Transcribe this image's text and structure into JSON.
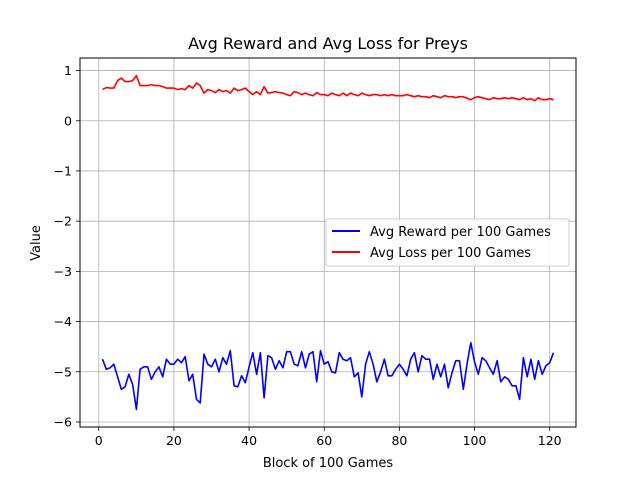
{
  "chart_data": {
    "type": "line",
    "title": "Avg Reward and Avg Loss for Preys",
    "xlabel": "Block of 100 Games",
    "ylabel": "Value",
    "xlim": [
      -5,
      127
    ],
    "ylim": [
      -6.1,
      1.25
    ],
    "xticks": [
      0,
      20,
      40,
      60,
      80,
      100,
      120
    ],
    "yticks": [
      1,
      0,
      -1,
      -2,
      -3,
      -4,
      -5,
      -6
    ],
    "ytick_labels": [
      "1",
      "0",
      "−1",
      "−2",
      "−3",
      "−4",
      "−5",
      "−6"
    ],
    "grid": true,
    "legend_position": "center-right",
    "series": [
      {
        "name": "Avg Reward per 100 Games",
        "color": "#0000ff",
        "x": [
          1,
          2,
          3,
          4,
          5,
          6,
          7,
          8,
          9,
          10,
          11,
          12,
          13,
          14,
          15,
          16,
          17,
          18,
          19,
          20,
          21,
          22,
          23,
          24,
          25,
          26,
          27,
          28,
          29,
          30,
          31,
          32,
          33,
          34,
          35,
          36,
          37,
          38,
          39,
          40,
          41,
          42,
          43,
          44,
          45,
          46,
          47,
          48,
          49,
          50,
          51,
          52,
          53,
          54,
          55,
          56,
          57,
          58,
          59,
          60,
          61,
          62,
          63,
          64,
          65,
          66,
          67,
          68,
          69,
          70,
          71,
          72,
          73,
          74,
          75,
          76,
          77,
          78,
          79,
          80,
          81,
          82,
          83,
          84,
          85,
          86,
          87,
          88,
          89,
          90,
          91,
          92,
          93,
          94,
          95,
          96,
          97,
          98,
          99,
          100,
          101,
          102,
          103,
          104,
          105,
          106,
          107,
          108,
          109,
          110,
          111,
          112,
          113,
          114,
          115,
          116,
          117,
          118,
          119,
          120,
          121
        ],
        "y": [
          -4.75,
          -4.95,
          -4.92,
          -4.85,
          -5.1,
          -5.35,
          -5.3,
          -5.05,
          -5.25,
          -5.75,
          -4.95,
          -4.9,
          -4.9,
          -5.15,
          -5.0,
          -4.9,
          -5.1,
          -4.75,
          -4.85,
          -4.85,
          -4.75,
          -4.82,
          -4.7,
          -5.18,
          -5.05,
          -5.55,
          -5.62,
          -4.65,
          -4.85,
          -4.9,
          -4.75,
          -5.0,
          -4.72,
          -4.85,
          -4.58,
          -5.28,
          -5.3,
          -5.08,
          -5.22,
          -4.9,
          -4.62,
          -5.05,
          -4.62,
          -5.52,
          -4.68,
          -4.72,
          -4.95,
          -4.78,
          -4.92,
          -4.6,
          -4.6,
          -4.85,
          -4.88,
          -4.6,
          -4.92,
          -4.65,
          -4.6,
          -5.2,
          -4.58,
          -4.85,
          -4.8,
          -5.0,
          -5.02,
          -4.62,
          -4.75,
          -4.78,
          -4.72,
          -5.1,
          -5.02,
          -5.5,
          -4.85,
          -4.6,
          -4.85,
          -5.2,
          -5.0,
          -4.75,
          -5.08,
          -5.08,
          -4.95,
          -4.85,
          -4.95,
          -5.08,
          -4.75,
          -4.62,
          -5.0,
          -4.68,
          -4.75,
          -4.75,
          -5.15,
          -4.85,
          -5.1,
          -4.85,
          -5.32,
          -5.02,
          -4.78,
          -4.78,
          -5.35,
          -4.85,
          -4.42,
          -4.8,
          -5.05,
          -4.72,
          -4.78,
          -4.92,
          -5.05,
          -4.78,
          -5.2,
          -5.1,
          -5.15,
          -5.28,
          -5.28,
          -5.55,
          -4.72,
          -5.1,
          -4.75,
          -5.15,
          -4.78,
          -5.05,
          -4.88,
          -4.82,
          -4.62
        ]
      },
      {
        "name": "Avg Loss per 100 Games",
        "color": "#ff0000",
        "x": [
          1,
          2,
          3,
          4,
          5,
          6,
          7,
          8,
          9,
          10,
          11,
          12,
          13,
          14,
          15,
          16,
          17,
          18,
          19,
          20,
          21,
          22,
          23,
          24,
          25,
          26,
          27,
          28,
          29,
          30,
          31,
          32,
          33,
          34,
          35,
          36,
          37,
          38,
          39,
          40,
          41,
          42,
          43,
          44,
          45,
          46,
          47,
          48,
          49,
          50,
          51,
          52,
          53,
          54,
          55,
          56,
          57,
          58,
          59,
          60,
          61,
          62,
          63,
          64,
          65,
          66,
          67,
          68,
          69,
          70,
          71,
          72,
          73,
          74,
          75,
          76,
          77,
          78,
          79,
          80,
          81,
          82,
          83,
          84,
          85,
          86,
          87,
          88,
          89,
          90,
          91,
          92,
          93,
          94,
          95,
          96,
          97,
          98,
          99,
          100,
          101,
          102,
          103,
          104,
          105,
          106,
          107,
          108,
          109,
          110,
          111,
          112,
          113,
          114,
          115,
          116,
          117,
          118,
          119,
          120,
          121
        ],
        "y": [
          0.62,
          0.66,
          0.65,
          0.65,
          0.8,
          0.85,
          0.78,
          0.78,
          0.8,
          0.9,
          0.7,
          0.7,
          0.7,
          0.72,
          0.7,
          0.7,
          0.68,
          0.65,
          0.65,
          0.65,
          0.62,
          0.64,
          0.62,
          0.7,
          0.65,
          0.75,
          0.7,
          0.55,
          0.62,
          0.6,
          0.56,
          0.62,
          0.58,
          0.6,
          0.55,
          0.65,
          0.6,
          0.62,
          0.65,
          0.58,
          0.52,
          0.58,
          0.52,
          0.68,
          0.55,
          0.56,
          0.58,
          0.56,
          0.55,
          0.52,
          0.5,
          0.58,
          0.56,
          0.52,
          0.55,
          0.52,
          0.5,
          0.56,
          0.52,
          0.52,
          0.5,
          0.55,
          0.52,
          0.5,
          0.55,
          0.5,
          0.55,
          0.52,
          0.5,
          0.55,
          0.52,
          0.5,
          0.52,
          0.52,
          0.5,
          0.52,
          0.5,
          0.52,
          0.5,
          0.5,
          0.5,
          0.52,
          0.5,
          0.48,
          0.5,
          0.48,
          0.48,
          0.46,
          0.5,
          0.48,
          0.46,
          0.5,
          0.48,
          0.48,
          0.46,
          0.48,
          0.48,
          0.45,
          0.42,
          0.46,
          0.48,
          0.46,
          0.44,
          0.42,
          0.46,
          0.44,
          0.44,
          0.46,
          0.44,
          0.46,
          0.44,
          0.42,
          0.46,
          0.42,
          0.44,
          0.4,
          0.46,
          0.42,
          0.42,
          0.44,
          0.42
        ]
      }
    ]
  }
}
